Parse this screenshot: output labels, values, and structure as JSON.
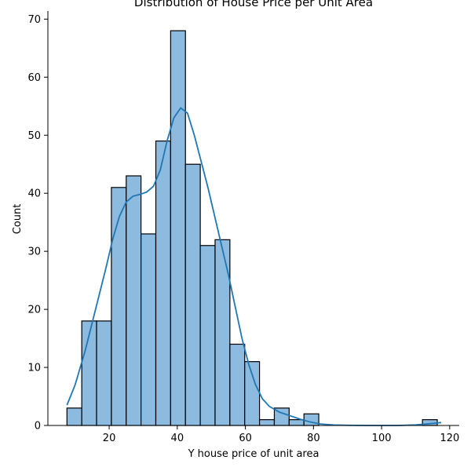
{
  "chart_data": {
    "type": "bar",
    "title": "Distribution of House Price per Unit Area",
    "xlabel": "Y house price of unit area",
    "ylabel": "Count",
    "xlim": [
      2.0,
      122.8
    ],
    "ylim": [
      0,
      71.4
    ],
    "x_ticks": [
      20,
      40,
      60,
      80,
      100,
      120
    ],
    "y_ticks": [
      0,
      10,
      20,
      30,
      40,
      50,
      60,
      70
    ],
    "bin_width": 4.35,
    "bins": [
      {
        "start": 7.6,
        "count": 3
      },
      {
        "start": 11.95,
        "count": 18
      },
      {
        "start": 16.3,
        "count": 18
      },
      {
        "start": 20.65,
        "count": 41
      },
      {
        "start": 25.0,
        "count": 43
      },
      {
        "start": 29.35,
        "count": 33
      },
      {
        "start": 33.7,
        "count": 49
      },
      {
        "start": 38.05,
        "count": 68
      },
      {
        "start": 42.4,
        "count": 45
      },
      {
        "start": 46.75,
        "count": 31
      },
      {
        "start": 51.1,
        "count": 32
      },
      {
        "start": 55.45,
        "count": 14
      },
      {
        "start": 59.8,
        "count": 11
      },
      {
        "start": 64.15,
        "count": 1
      },
      {
        "start": 68.5,
        "count": 3
      },
      {
        "start": 72.85,
        "count": 1
      },
      {
        "start": 77.2,
        "count": 2
      },
      {
        "start": 112.0,
        "count": 1
      }
    ],
    "kde": {
      "x": [
        7.6,
        10,
        13,
        16,
        19,
        21,
        23,
        25,
        27,
        29,
        31,
        33,
        35,
        37,
        39,
        41,
        43,
        45,
        47,
        49,
        51,
        53,
        55,
        57,
        59,
        61,
        63,
        65,
        67,
        70,
        73,
        76,
        79,
        82,
        86,
        90,
        95,
        100,
        105,
        110,
        114,
        117.5
      ],
      "y": [
        3.5,
        7.0,
        13.0,
        20.0,
        27.0,
        32.0,
        36.0,
        38.5,
        39.5,
        39.8,
        40.2,
        41.2,
        44.0,
        49.0,
        53.0,
        54.7,
        53.8,
        50.0,
        45.5,
        41.0,
        36.0,
        31.0,
        26.0,
        20.5,
        15.0,
        10.5,
        7.0,
        4.6,
        3.3,
        2.3,
        1.7,
        1.1,
        0.6,
        0.25,
        0.08,
        0.03,
        0.0,
        0.0,
        0.0,
        0.1,
        0.3,
        0.5
      ]
    },
    "bar_color": "#8dbadf",
    "bar_edge_color": "#000000",
    "kde_color": "#1f77b4",
    "grid": false
  }
}
